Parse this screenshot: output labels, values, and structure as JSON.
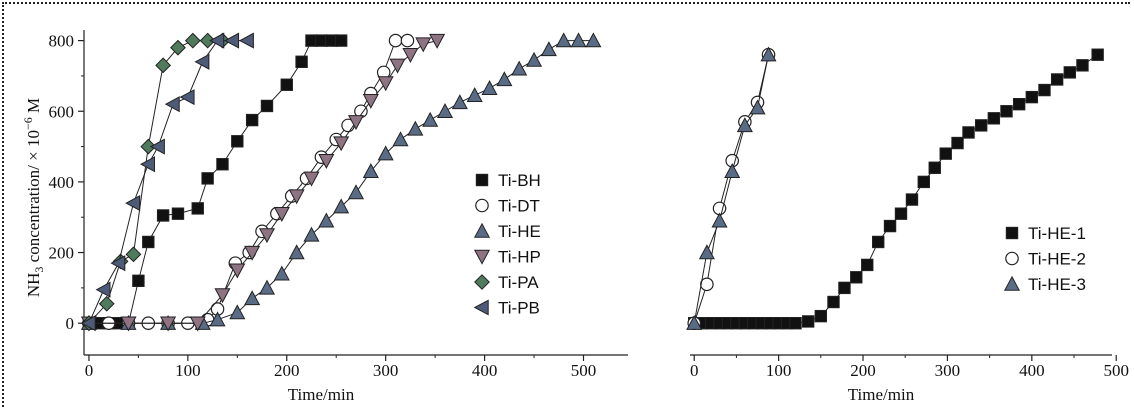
{
  "chart_data": [
    {
      "type": "line",
      "xlabel": "Time/min",
      "ylabel": "NH",
      "ylabel_sub": "3",
      "ylabel_rest": " concentration/ × 10",
      "ylabel_sup": "−6",
      "ylabel_end": " M",
      "xlim": [
        -5,
        545
      ],
      "ylim": [
        -90,
        830
      ],
      "xticks": [
        0,
        100,
        200,
        300,
        400,
        500
      ],
      "yticks": [
        0,
        200,
        400,
        600,
        800
      ],
      "legend_position": "right",
      "series": [
        {
          "name": "Ti-BH",
          "marker": "square",
          "color": "#111111",
          "x": [
            0,
            10,
            20,
            30,
            40,
            50,
            60,
            75,
            90,
            110,
            120,
            135,
            150,
            165,
            180,
            200,
            215,
            225,
            235,
            245,
            255
          ],
          "y": [
            0,
            0,
            0,
            0,
            0,
            120,
            230,
            305,
            310,
            325,
            410,
            450,
            515,
            575,
            615,
            675,
            740,
            800,
            800,
            800,
            800
          ]
        },
        {
          "name": "Ti-DT",
          "marker": "circle",
          "color": "#ffffff",
          "x": [
            0,
            20,
            40,
            60,
            80,
            100,
            120,
            130,
            148,
            162,
            175,
            190,
            205,
            220,
            235,
            250,
            262,
            275,
            285,
            298,
            310,
            322
          ],
          "y": [
            0,
            0,
            0,
            0,
            0,
            0,
            10,
            40,
            170,
            200,
            260,
            310,
            360,
            410,
            470,
            520,
            560,
            600,
            650,
            710,
            800,
            800
          ]
        },
        {
          "name": "Ti-HE",
          "marker": "triangle-up",
          "color": "#5a6b86",
          "x": [
            0,
            40,
            80,
            115,
            130,
            150,
            165,
            180,
            195,
            210,
            225,
            240,
            255,
            270,
            285,
            300,
            315,
            330,
            345,
            360,
            375,
            390,
            405,
            420,
            435,
            450,
            465,
            480,
            495,
            510
          ],
          "y": [
            0,
            0,
            0,
            0,
            10,
            30,
            70,
            100,
            140,
            200,
            250,
            290,
            330,
            370,
            430,
            480,
            520,
            550,
            575,
            600,
            625,
            645,
            665,
            690,
            720,
            745,
            775,
            800,
            800,
            800
          ]
        },
        {
          "name": "Ti-HP",
          "marker": "triangle-down",
          "color": "#8e7382",
          "x": [
            0,
            40,
            80,
            110,
            135,
            150,
            165,
            180,
            195,
            210,
            225,
            240,
            255,
            270,
            285,
            300,
            312,
            325,
            338,
            352
          ],
          "y": [
            0,
            0,
            0,
            0,
            80,
            150,
            200,
            250,
            310,
            360,
            410,
            460,
            510,
            570,
            630,
            680,
            730,
            760,
            790,
            800
          ]
        },
        {
          "name": "Ti-PA",
          "marker": "diamond",
          "color": "#4f7a5c",
          "x": [
            0,
            18,
            32,
            45,
            60,
            75,
            90,
            105,
            120,
            135
          ],
          "y": [
            0,
            55,
            175,
            195,
            500,
            730,
            780,
            800,
            800,
            800
          ]
        },
        {
          "name": "Ti-PB",
          "marker": "triangle-left",
          "color": "#4d5b78",
          "x": [
            0,
            15,
            30,
            45,
            60,
            70,
            85,
            100,
            115,
            130,
            145,
            160
          ],
          "y": [
            0,
            95,
            170,
            340,
            450,
            500,
            620,
            640,
            740,
            800,
            800,
            800
          ]
        }
      ]
    },
    {
      "type": "line",
      "xlabel": "Time/min",
      "xlim": [
        -5,
        495
      ],
      "ylim": [
        -90,
        830
      ],
      "xticks": [
        0,
        100,
        200,
        300,
        400,
        500
      ],
      "legend_position": "right",
      "series": [
        {
          "name": "Ti-HE-1",
          "marker": "square",
          "color": "#111111",
          "x": [
            0,
            10,
            20,
            30,
            40,
            50,
            60,
            70,
            80,
            90,
            100,
            110,
            120,
            135,
            150,
            165,
            178,
            192,
            205,
            218,
            232,
            245,
            258,
            272,
            285,
            298,
            312,
            325,
            340,
            355,
            370,
            385,
            400,
            415,
            430,
            445,
            460,
            478
          ],
          "y": [
            0,
            0,
            0,
            0,
            0,
            0,
            0,
            0,
            0,
            0,
            0,
            0,
            0,
            5,
            20,
            60,
            100,
            130,
            165,
            230,
            275,
            310,
            350,
            400,
            440,
            480,
            510,
            540,
            560,
            580,
            600,
            620,
            640,
            660,
            690,
            710,
            730,
            760
          ]
        },
        {
          "name": "Ti-HE-2",
          "marker": "circle",
          "color": "#ffffff",
          "x": [
            0,
            15,
            30,
            45,
            60,
            75,
            88
          ],
          "y": [
            0,
            110,
            325,
            460,
            570,
            625,
            760
          ]
        },
        {
          "name": "Ti-HE-3",
          "marker": "triangle-up",
          "color": "#5a6b86",
          "x": [
            0,
            15,
            30,
            45,
            60,
            75,
            88
          ],
          "y": [
            0,
            200,
            290,
            430,
            560,
            610,
            760
          ]
        }
      ]
    }
  ]
}
